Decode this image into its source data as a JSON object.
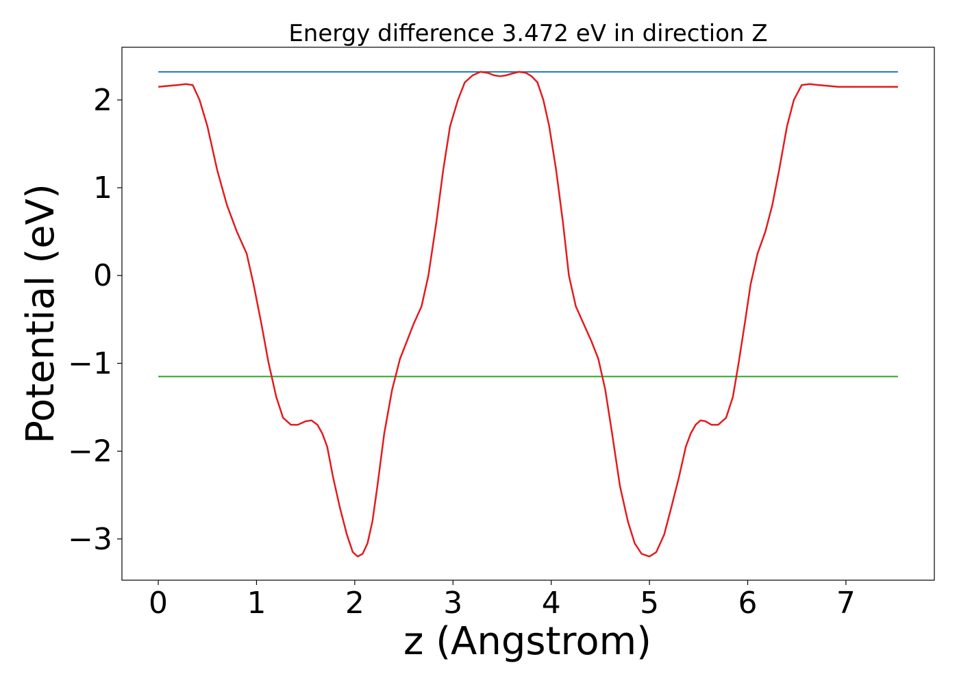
{
  "chart_data": {
    "type": "line",
    "title": "Energy difference 3.472 eV in direction Z",
    "xlabel": "z (Angstrom)",
    "ylabel": "Potential (eV)",
    "xlim": [
      -0.37,
      7.9
    ],
    "ylim": [
      -3.47,
      2.6
    ],
    "xticks": [
      0,
      1,
      2,
      3,
      4,
      5,
      6,
      7
    ],
    "yticks": [
      -3,
      -2,
      -1,
      0,
      1,
      2
    ],
    "xtick_labels": [
      "0",
      "1",
      "2",
      "3",
      "4",
      "5",
      "6",
      "7"
    ],
    "ytick_labels": [
      "−3",
      "−2",
      "−1",
      "0",
      "1",
      "2"
    ],
    "grid": false,
    "legend": "none",
    "series": [
      {
        "color": "#1f77b4",
        "x": [
          0,
          7.53
        ],
        "y": [
          2.32,
          2.32
        ]
      },
      {
        "color": "#2ca02c",
        "x": [
          0,
          7.53
        ],
        "y": [
          -1.15,
          -1.15
        ]
      },
      {
        "color": "#e41a1c",
        "x": [
          0,
          0.1,
          0.2,
          0.28,
          0.35,
          0.42,
          0.5,
          0.6,
          0.7,
          0.8,
          0.9,
          0.97,
          1.05,
          1.12,
          1.2,
          1.27,
          1.35,
          1.42,
          1.5,
          1.56,
          1.62,
          1.67,
          1.72,
          1.78,
          1.85,
          1.92,
          1.98,
          2.03,
          2.08,
          2.13,
          2.18,
          2.23,
          2.3,
          2.38,
          2.46,
          2.53,
          2.6,
          2.68,
          2.75,
          2.83,
          2.9,
          2.97,
          3.05,
          3.12,
          3.2,
          3.28,
          3.35,
          3.42,
          3.48,
          3.54,
          3.6,
          3.67,
          3.74,
          3.8,
          3.86,
          3.92,
          3.98,
          4.05,
          4.12,
          4.18,
          4.25,
          4.33,
          4.41,
          4.48,
          4.55,
          4.62,
          4.7,
          4.78,
          4.85,
          4.92,
          5.0,
          5.07,
          5.15,
          5.22,
          5.3,
          5.37,
          5.42,
          5.47,
          5.52,
          5.57,
          5.63,
          5.7,
          5.78,
          5.85,
          5.91,
          5.97,
          6.03,
          6.1,
          6.18,
          6.25,
          6.32,
          6.4,
          6.47,
          6.55,
          6.63,
          6.72,
          6.82,
          6.92,
          7.02,
          7.12,
          7.2,
          7.26,
          7.32,
          7.4,
          7.47,
          7.53
        ],
        "y": [
          2.15,
          2.16,
          2.17,
          2.18,
          2.17,
          2.0,
          1.7,
          1.2,
          0.8,
          0.5,
          0.25,
          -0.1,
          -0.55,
          -0.98,
          -1.38,
          -1.62,
          -1.7,
          -1.7,
          -1.66,
          -1.65,
          -1.7,
          -1.8,
          -1.95,
          -2.3,
          -2.65,
          -2.95,
          -3.15,
          -3.2,
          -3.17,
          -3.05,
          -2.8,
          -2.4,
          -1.8,
          -1.3,
          -0.95,
          -0.75,
          -0.55,
          -0.35,
          0.0,
          0.6,
          1.2,
          1.7,
          2.0,
          2.2,
          2.28,
          2.32,
          2.31,
          2.28,
          2.27,
          2.28,
          2.3,
          2.32,
          2.31,
          2.27,
          2.2,
          2.0,
          1.7,
          1.2,
          0.6,
          0.0,
          -0.35,
          -0.55,
          -0.75,
          -0.95,
          -1.3,
          -1.8,
          -2.4,
          -2.8,
          -3.05,
          -3.17,
          -3.2,
          -3.15,
          -2.95,
          -2.65,
          -2.3,
          -1.95,
          -1.8,
          -1.7,
          -1.65,
          -1.66,
          -1.7,
          -1.7,
          -1.62,
          -1.38,
          -0.98,
          -0.55,
          -0.1,
          0.25,
          0.5,
          0.8,
          1.2,
          1.7,
          2.0,
          2.17,
          2.18,
          2.17,
          2.16,
          2.15,
          2.15,
          2.15,
          2.15,
          2.15,
          2.15,
          2.15,
          2.15,
          2.15
        ]
      }
    ]
  }
}
